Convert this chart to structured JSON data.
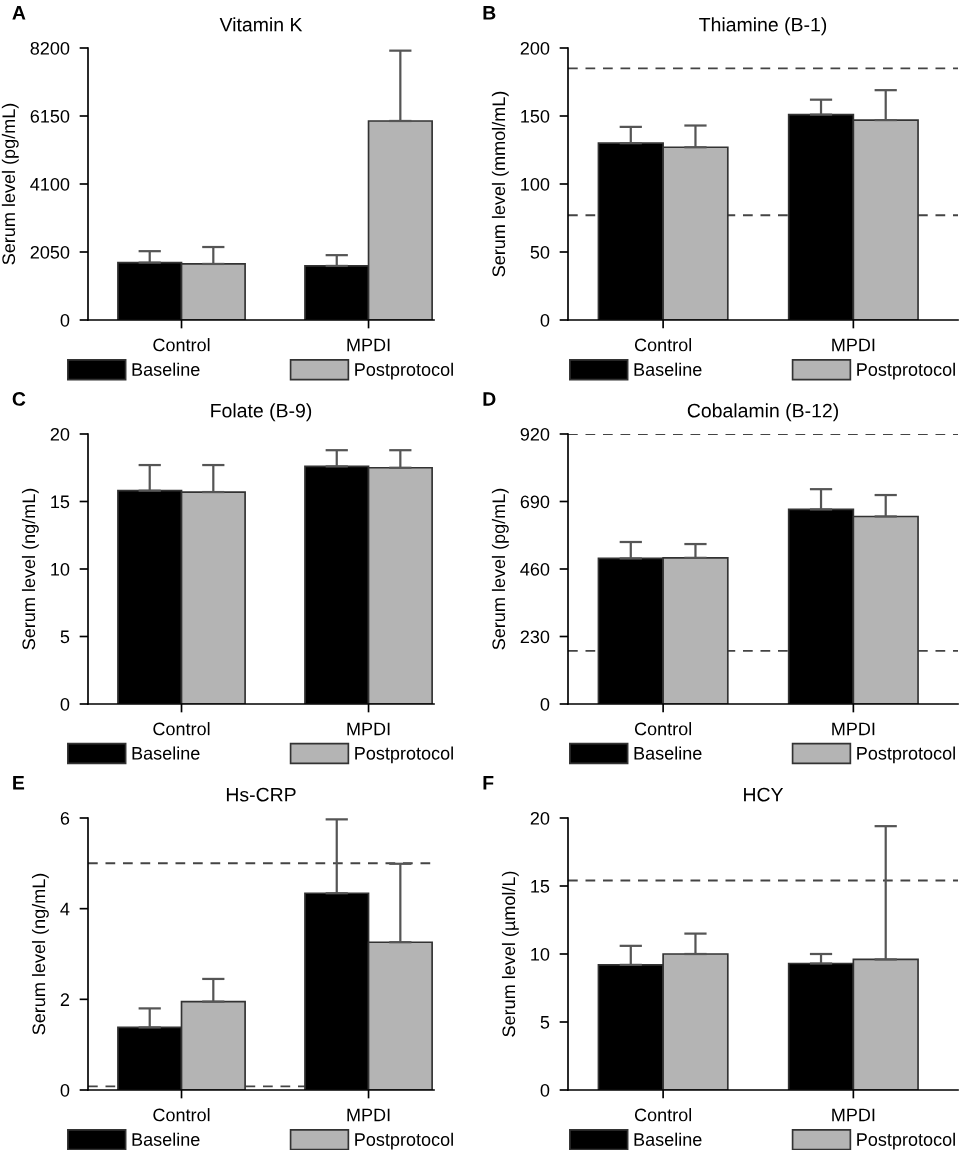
{
  "chart_data": [
    {
      "type": "bar",
      "title": "Vitamin K",
      "ylabel": "Serum level (pg/mL)",
      "annotations": [
        "A"
      ],
      "categories": [
        "Control",
        "MPDI"
      ],
      "ylim": [
        0,
        8200
      ],
      "yticks": [
        0,
        2050,
        4100,
        6150,
        8200
      ],
      "legend": "bottom",
      "grid": false,
      "series": [
        {
          "name": "Baseline",
          "color": "#000000",
          "values": [
            1730,
            1630
          ],
          "errors": [
            [
              1730,
              2075
            ],
            [
              1630,
              1955
            ]
          ]
        },
        {
          "name": "Postprotocol",
          "color": "#b4b4b4",
          "values": [
            1690,
            6000
          ],
          "errors": [
            [
              1690,
              2200
            ],
            [
              6000,
              8120
            ]
          ]
        }
      ]
    },
    {
      "type": "bar",
      "title": "Thiamine (B-1)",
      "ylabel": "Serum level (mmol/mL)",
      "annotations": [
        "B"
      ],
      "categories": [
        "Control",
        "MPDI"
      ],
      "ylim": [
        0,
        200
      ],
      "yticks": [
        0,
        50,
        100,
        150,
        200
      ],
      "legend": "bottom",
      "grid": false,
      "ref_lines": [
        {
          "axis": "y",
          "value": 185,
          "label": null,
          "line_style": "dashed"
        },
        {
          "axis": "y",
          "value": 77,
          "label": null,
          "line_style": "dashed"
        }
      ],
      "series": [
        {
          "name": "Baseline",
          "color": "#000000",
          "values": [
            130,
            151
          ],
          "errors": [
            [
              130,
              142
            ],
            [
              151,
              162
            ]
          ]
        },
        {
          "name": "Postprotocol",
          "color": "#b4b4b4",
          "values": [
            127,
            147
          ],
          "errors": [
            [
              127,
              143
            ],
            [
              147,
              169
            ]
          ]
        }
      ]
    },
    {
      "type": "bar",
      "title": "Folate (B-9)",
      "ylabel": "Serum level (ng/mL)",
      "annotations": [
        "C"
      ],
      "categories": [
        "Control",
        "MPDI"
      ],
      "ylim": [
        0,
        20
      ],
      "yticks": [
        0,
        5,
        10,
        15,
        20
      ],
      "legend": "bottom",
      "grid": false,
      "series": [
        {
          "name": "Baseline",
          "color": "#000000",
          "values": [
            15.8,
            17.6
          ],
          "errors": [
            [
              15.8,
              17.7
            ],
            [
              17.6,
              18.8
            ]
          ]
        },
        {
          "name": "Postprotocol",
          "color": "#b4b4b4",
          "values": [
            15.7,
            17.5
          ],
          "errors": [
            [
              15.7,
              17.7
            ],
            [
              17.5,
              18.8
            ]
          ]
        }
      ]
    },
    {
      "type": "bar",
      "title": "Cobalamin (B-12)",
      "ylabel": "Serum level (pg/mL)",
      "annotations": [
        "D"
      ],
      "categories": [
        "Control",
        "MPDI"
      ],
      "ylim": [
        0,
        920
      ],
      "yticks": [
        0,
        230,
        460,
        690,
        920
      ],
      "legend": "bottom",
      "grid": false,
      "ref_lines": [
        {
          "axis": "y",
          "value": 920,
          "label": null,
          "line_style": "dashed"
        },
        {
          "axis": "y",
          "value": 181,
          "label": null,
          "line_style": "dashed"
        }
      ],
      "series": [
        {
          "name": "Baseline",
          "color": "#000000",
          "values": [
            496,
            663
          ],
          "errors": [
            [
              496,
              552
            ],
            [
              663,
              732
            ]
          ]
        },
        {
          "name": "Postprotocol",
          "color": "#b4b4b4",
          "values": [
            498,
            639
          ],
          "errors": [
            [
              498,
              545
            ],
            [
              639,
              712
            ]
          ]
        }
      ]
    },
    {
      "type": "bar",
      "title": "Hs-CRP",
      "ylabel": "Serum level (ng/mL)",
      "annotations": [
        "E"
      ],
      "categories": [
        "Control",
        "MPDI"
      ],
      "ylim": [
        0,
        6
      ],
      "yticks": [
        0,
        2,
        4,
        6
      ],
      "legend": "bottom",
      "grid": false,
      "ref_lines": [
        {
          "axis": "y",
          "value": 5,
          "label": null,
          "line_style": "dashed"
        },
        {
          "axis": "y",
          "value": 0.08,
          "label": null,
          "line_style": "dashed"
        }
      ],
      "series": [
        {
          "name": "Baseline",
          "color": "#000000",
          "values": [
            1.38,
            4.34
          ],
          "errors": [
            [
              1.38,
              1.8
            ],
            [
              4.34,
              5.97
            ]
          ]
        },
        {
          "name": "Postprotocol",
          "color": "#b4b4b4",
          "values": [
            1.95,
            3.26
          ],
          "errors": [
            [
              1.95,
              2.45
            ],
            [
              3.26,
              4.99
            ]
          ]
        }
      ]
    },
    {
      "type": "bar",
      "title": "HCY",
      "ylabel": "Serum level (µmol/L)",
      "annotations": [
        "F"
      ],
      "categories": [
        "Control",
        "MPDI"
      ],
      "ylim": [
        0,
        20
      ],
      "yticks": [
        0,
        5,
        10,
        15,
        20
      ],
      "legend": "bottom",
      "grid": false,
      "ref_lines": [
        {
          "axis": "y",
          "value": 15.4,
          "label": null,
          "line_style": "dashed"
        }
      ],
      "series": [
        {
          "name": "Baseline",
          "color": "#000000",
          "values": [
            9.2,
            9.3
          ],
          "errors": [
            [
              9.2,
              10.6
            ],
            [
              9.3,
              10.0
            ]
          ]
        },
        {
          "name": "Postprotocol",
          "color": "#b4b4b4",
          "values": [
            10.0,
            9.6
          ],
          "errors": [
            [
              10.0,
              11.5
            ],
            [
              9.6,
              19.4
            ]
          ]
        }
      ]
    }
  ]
}
